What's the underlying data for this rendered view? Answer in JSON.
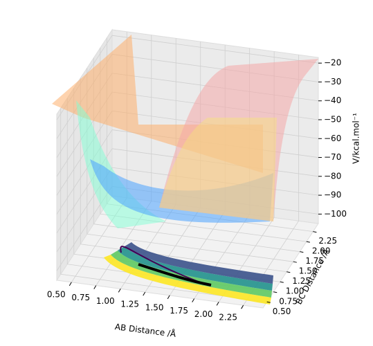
{
  "chart_data": {
    "type": "surface3d",
    "xlabel": "AB Distance /Å",
    "ylabel": "BC Distance /Å",
    "zlabel": "V/kcal.mol⁻¹",
    "xlim": [
      0.35,
      2.45
    ],
    "ylim": [
      0.35,
      2.45
    ],
    "zlim": [
      -105,
      -17
    ],
    "xticks": [
      {
        "value": 0.5,
        "label": "0.50"
      },
      {
        "value": 0.75,
        "label": "0.75"
      },
      {
        "value": 1.0,
        "label": "1.00"
      },
      {
        "value": 1.25,
        "label": "1.25"
      },
      {
        "value": 1.5,
        "label": "1.50"
      },
      {
        "value": 1.75,
        "label": "1.75"
      },
      {
        "value": 2.0,
        "label": "2.00"
      },
      {
        "value": 2.25,
        "label": "2.25"
      }
    ],
    "yticks": [
      {
        "value": 0.5,
        "label": "0.50"
      },
      {
        "value": 0.75,
        "label": "0.75"
      },
      {
        "value": 1.0,
        "label": "1.00"
      },
      {
        "value": 1.25,
        "label": "1.25"
      },
      {
        "value": 1.5,
        "label": "1.50"
      },
      {
        "value": 1.75,
        "label": "1.75"
      },
      {
        "value": 2.0,
        "label": "2.00"
      },
      {
        "value": 2.25,
        "label": "2.25"
      }
    ],
    "zticks": [
      {
        "value": -20,
        "label": "−20"
      },
      {
        "value": -30,
        "label": "−30"
      },
      {
        "value": -40,
        "label": "−40"
      },
      {
        "value": -50,
        "label": "−50"
      },
      {
        "value": -60,
        "label": "−60"
      },
      {
        "value": -70,
        "label": "−70"
      },
      {
        "value": -80,
        "label": "−80"
      },
      {
        "value": -90,
        "label": "−90"
      },
      {
        "value": -100,
        "label": "−100"
      }
    ],
    "grid": true
  }
}
